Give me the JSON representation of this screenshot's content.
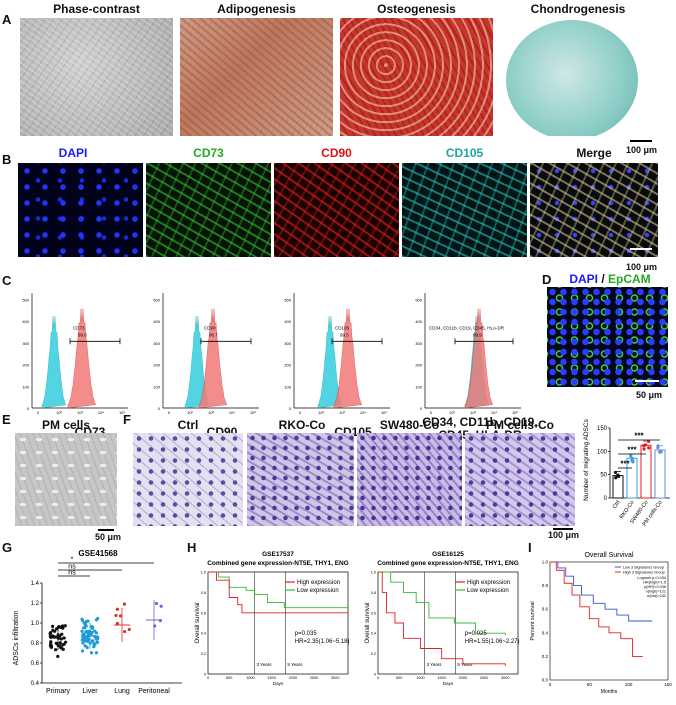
{
  "panel_letters": [
    "A",
    "B",
    "C",
    "D",
    "E",
    "F",
    "G",
    "H",
    "I"
  ],
  "panelA": {
    "titles": [
      "Phase-contrast",
      "Adipogenesis",
      "Osteogenesis",
      "Chondrogenesis"
    ],
    "scale": "100 μm"
  },
  "panelB": {
    "titles": [
      "DAPI",
      "CD73",
      "CD90",
      "CD105",
      "Merge"
    ],
    "title_colors": [
      "#1a1aff",
      "#22aa22",
      "#e01010",
      "#1aa7a7",
      "#111111"
    ],
    "scale": "100 μm"
  },
  "panelC": {
    "markers": [
      "CD73",
      "CD90",
      "CD105",
      "CD34, CD11b, CD19,\nCD45, HLA-DR"
    ],
    "gate_labels": [
      "CD73",
      "CD90",
      "CD105",
      "CD34, CD11b, CD19, CD45, HLA-DR"
    ],
    "gate_values": [
      "99.6",
      "96.7",
      "99.5",
      "99.9"
    ],
    "yticks": [
      "0",
      "100",
      "200",
      "300",
      "400",
      "500"
    ],
    "xticks": [
      "0",
      "10²",
      "10³",
      "10⁴",
      "10⁵"
    ]
  },
  "panelD": {
    "title_dapi": "DAPI",
    "sep": " / ",
    "title_epcam": "EpCAM",
    "scale": "50 μm"
  },
  "panelE": {
    "title": "PM cells",
    "scale": "50 μm"
  },
  "panelF": {
    "titles": [
      "Ctrl",
      "RKO-Co",
      "SW480-Co",
      "PM cells-Co"
    ],
    "scale": "100 μm",
    "chart_data": {
      "type": "bar",
      "categories": [
        "Ctrl",
        "RKO-Co",
        "SW480-Co",
        "PM cells-Co"
      ],
      "values": [
        48,
        85,
        113,
        103
      ],
      "ylabel": "Number of migrating ADSCs",
      "ylim": [
        0,
        150
      ],
      "yticks": [
        "0",
        "50",
        "100",
        "150"
      ],
      "significance": [
        "***",
        "***",
        "***"
      ],
      "colors": [
        "#111111",
        "#3aa0d8",
        "#e02020",
        "#6a8fd0"
      ]
    }
  },
  "panelG": {
    "title": "GSE41568",
    "chart_data": {
      "type": "scatter",
      "categories": [
        "Primary",
        "Liver",
        "Lung",
        "Peritoneal"
      ],
      "means": [
        0.85,
        0.87,
        0.98,
        1.03
      ],
      "ylabel": "ADSCs infiltration",
      "ylim": [
        0.4,
        1.4
      ],
      "yticks": [
        "0.4",
        "0.6",
        "0.8",
        "1.0",
        "1.2",
        "1.4"
      ],
      "significance": [
        "ns",
        "ns",
        "*"
      ],
      "colors": [
        "#111111",
        "#1e9bd7",
        "#e0302a",
        "#6a6ad0"
      ]
    }
  },
  "panelH": {
    "plots": [
      {
        "title": "GSE17537",
        "subtitle": "Combined gene expression-NT5E, THY1, ENG",
        "legend": [
          "High expression",
          "Low expression"
        ],
        "stats": [
          "p=0.035",
          "HR=2.35(1.06~5.18)"
        ],
        "year_labels": [
          "3 Years",
          "5 Years"
        ],
        "ylabel": "Overall survival",
        "xlabel": "Days",
        "xticks": [
          "0",
          "500",
          "1000",
          "1500",
          "2000",
          "2500",
          "3000"
        ],
        "yticks": [
          "0",
          "0.2",
          "0.4",
          "0.6",
          "0.8",
          "1.0"
        ]
      },
      {
        "title": "GSE16125",
        "subtitle": "Combined gene expression-NT5E, THY1, ENG",
        "legend": [
          "High expression",
          "Low expression"
        ],
        "stats": [
          "p=0.025",
          "HR=1.55(1.06~2.27)"
        ],
        "year_labels": [
          "3 Years",
          "5 Years"
        ],
        "ylabel": "Overall survival",
        "xlabel": "Days",
        "xticks": [
          "0",
          "500",
          "1000",
          "1500",
          "2000",
          "2500",
          "3000"
        ],
        "yticks": [
          "0",
          "0.2",
          "0.4",
          "0.6",
          "0.8",
          "1.0"
        ]
      }
    ]
  },
  "panelI": {
    "title": "Overall Survival",
    "legend": [
      "Low 3 Signatures Group",
      "High 3 Signatures Group"
    ],
    "stats": [
      "Logrank p=0.034",
      "HR(high)=1.5",
      "p(HR)=0.036",
      "n(high)=121",
      "n(low)=242"
    ],
    "ylabel": "Percent survival",
    "xlabel": "Months",
    "xticks": [
      "0",
      "50",
      "100",
      "150"
    ],
    "yticks": [
      "0.0",
      "0.2",
      "0.4",
      "0.6",
      "0.8",
      "1.0"
    ]
  },
  "colors": {
    "high": "#e02020",
    "low": "#33bb33",
    "blue": "#3355dd",
    "cyan": "#40d0e0",
    "salmon": "#f07a78"
  }
}
